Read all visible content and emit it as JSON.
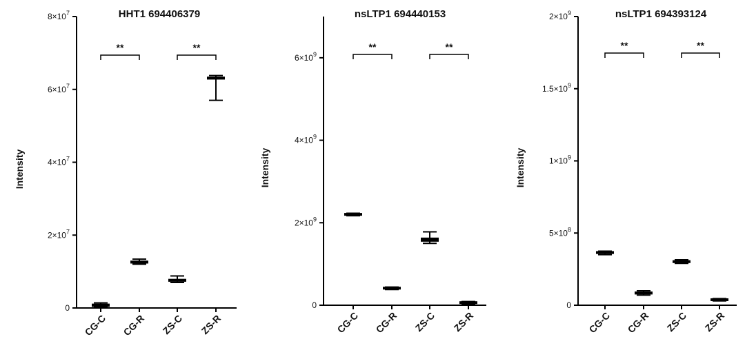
{
  "chart_data": [
    {
      "type": "box",
      "title": "HHT1 694406379",
      "ylabel": "Intensity",
      "categories": [
        "CG-C",
        "CG-R",
        "ZS-C",
        "ZS-R"
      ],
      "yticks": [
        {
          "value": 0,
          "label": "0"
        },
        {
          "value": 20000000,
          "label": "2×10",
          "exp": "7"
        },
        {
          "value": 40000000,
          "label": "4×10",
          "exp": "7"
        },
        {
          "value": 60000000,
          "label": "6×10",
          "exp": "7"
        },
        {
          "value": 80000000,
          "label": "8×10",
          "exp": "7"
        }
      ],
      "ylim": [
        0,
        80000000
      ],
      "boxes": [
        {
          "category": "CG-C",
          "min": 200000,
          "q1": 300000,
          "median": 700000,
          "q3": 1200000,
          "max": 1400000
        },
        {
          "category": "CG-R",
          "min": 12000000,
          "q1": 12200000,
          "median": 12600000,
          "q3": 13000000,
          "max": 13400000
        },
        {
          "category": "ZS-C",
          "min": 7000000,
          "q1": 7200000,
          "median": 7600000,
          "q3": 8000000,
          "max": 8800000
        },
        {
          "category": "ZS-R",
          "min": 57000000,
          "q1": 62700000,
          "median": 63100000,
          "q3": 63500000,
          "max": 63800000
        }
      ],
      "significance": [
        {
          "from": "CG-C",
          "to": "CG-R",
          "label": "**"
        },
        {
          "from": "ZS-C",
          "to": "ZS-R",
          "label": "**"
        }
      ]
    },
    {
      "type": "box",
      "title": "nsLTP1 694440153",
      "ylabel": "Intensity",
      "categories": [
        "CG-C",
        "CG-R",
        "ZS-C",
        "ZS-R"
      ],
      "yticks": [
        {
          "value": 0,
          "label": "0"
        },
        {
          "value": 2000000000,
          "label": "2×10",
          "exp": "9"
        },
        {
          "value": 4000000000,
          "label": "4×10",
          "exp": "9"
        },
        {
          "value": 6000000000,
          "label": "6×10",
          "exp": "9"
        }
      ],
      "ylim": [
        0,
        7000000000
      ],
      "boxes": [
        {
          "category": "CG-C",
          "min": 2170000000,
          "q1": 2180000000,
          "median": 2200000000,
          "q3": 2220000000,
          "max": 2230000000
        },
        {
          "category": "CG-R",
          "min": 380000000,
          "q1": 390000000,
          "median": 410000000,
          "q3": 430000000,
          "max": 440000000
        },
        {
          "category": "ZS-C",
          "min": 1500000000,
          "q1": 1540000000,
          "median": 1600000000,
          "q3": 1640000000,
          "max": 1780000000
        },
        {
          "category": "ZS-R",
          "min": 30000000,
          "q1": 40000000,
          "median": 60000000,
          "q3": 80000000,
          "max": 90000000
        }
      ],
      "significance": [
        {
          "from": "CG-C",
          "to": "CG-R",
          "label": "**"
        },
        {
          "from": "ZS-C",
          "to": "ZS-R",
          "label": "**"
        }
      ]
    },
    {
      "type": "box",
      "title": "nsLTP1 694393124",
      "ylabel": "Intensity",
      "categories": [
        "CG-C",
        "CG-R",
        "ZS-C",
        "ZS-R"
      ],
      "yticks": [
        {
          "value": 0,
          "label": "0"
        },
        {
          "value": 500000000,
          "label": "5×10",
          "exp": "8"
        },
        {
          "value": 1000000000,
          "label": "1×10",
          "exp": "9"
        },
        {
          "value": 1500000000,
          "label": "1.5×10",
          "exp": "9"
        },
        {
          "value": 2000000000,
          "label": "2×10",
          "exp": "9"
        }
      ],
      "ylim": [
        0,
        2000000000
      ],
      "boxes": [
        {
          "category": "CG-C",
          "min": 350000000,
          "q1": 355000000,
          "median": 362000000,
          "q3": 370000000,
          "max": 375000000
        },
        {
          "category": "CG-R",
          "min": 70000000,
          "q1": 75000000,
          "median": 82000000,
          "q3": 90000000,
          "max": 100000000
        },
        {
          "category": "ZS-C",
          "min": 290000000,
          "q1": 293000000,
          "median": 300000000,
          "q3": 307000000,
          "max": 315000000
        },
        {
          "category": "ZS-R",
          "min": 30000000,
          "q1": 33000000,
          "median": 38000000,
          "q3": 43000000,
          "max": 46000000
        }
      ],
      "significance": [
        {
          "from": "CG-C",
          "to": "CG-R",
          "label": "**"
        },
        {
          "from": "ZS-C",
          "to": "ZS-R",
          "label": "**"
        }
      ]
    }
  ]
}
